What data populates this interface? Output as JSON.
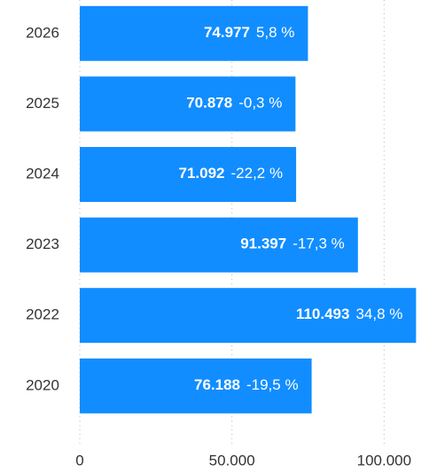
{
  "chart_data": {
    "type": "bar",
    "orientation": "horizontal",
    "categories": [
      "2026",
      "2025",
      "2024",
      "2023",
      "2022",
      "2020"
    ],
    "values": [
      74977,
      70878,
      71092,
      91397,
      110493,
      76188
    ],
    "value_labels": [
      "74.977",
      "70.878",
      "71.092",
      "91.397",
      "110.493",
      "76.188"
    ],
    "change_labels": [
      "5,8 %",
      "-0,3 %",
      "-22,2 %",
      "-17,3 %",
      "34,8 %",
      "-19,5 %"
    ],
    "color": "#118DFF",
    "xlim": [
      0,
      114000
    ],
    "xticks": [
      0,
      {
        "value": 50000,
        "label": "50.000"
      },
      {
        "value": 100000,
        "label": "100.000"
      }
    ],
    "grid": true
  }
}
